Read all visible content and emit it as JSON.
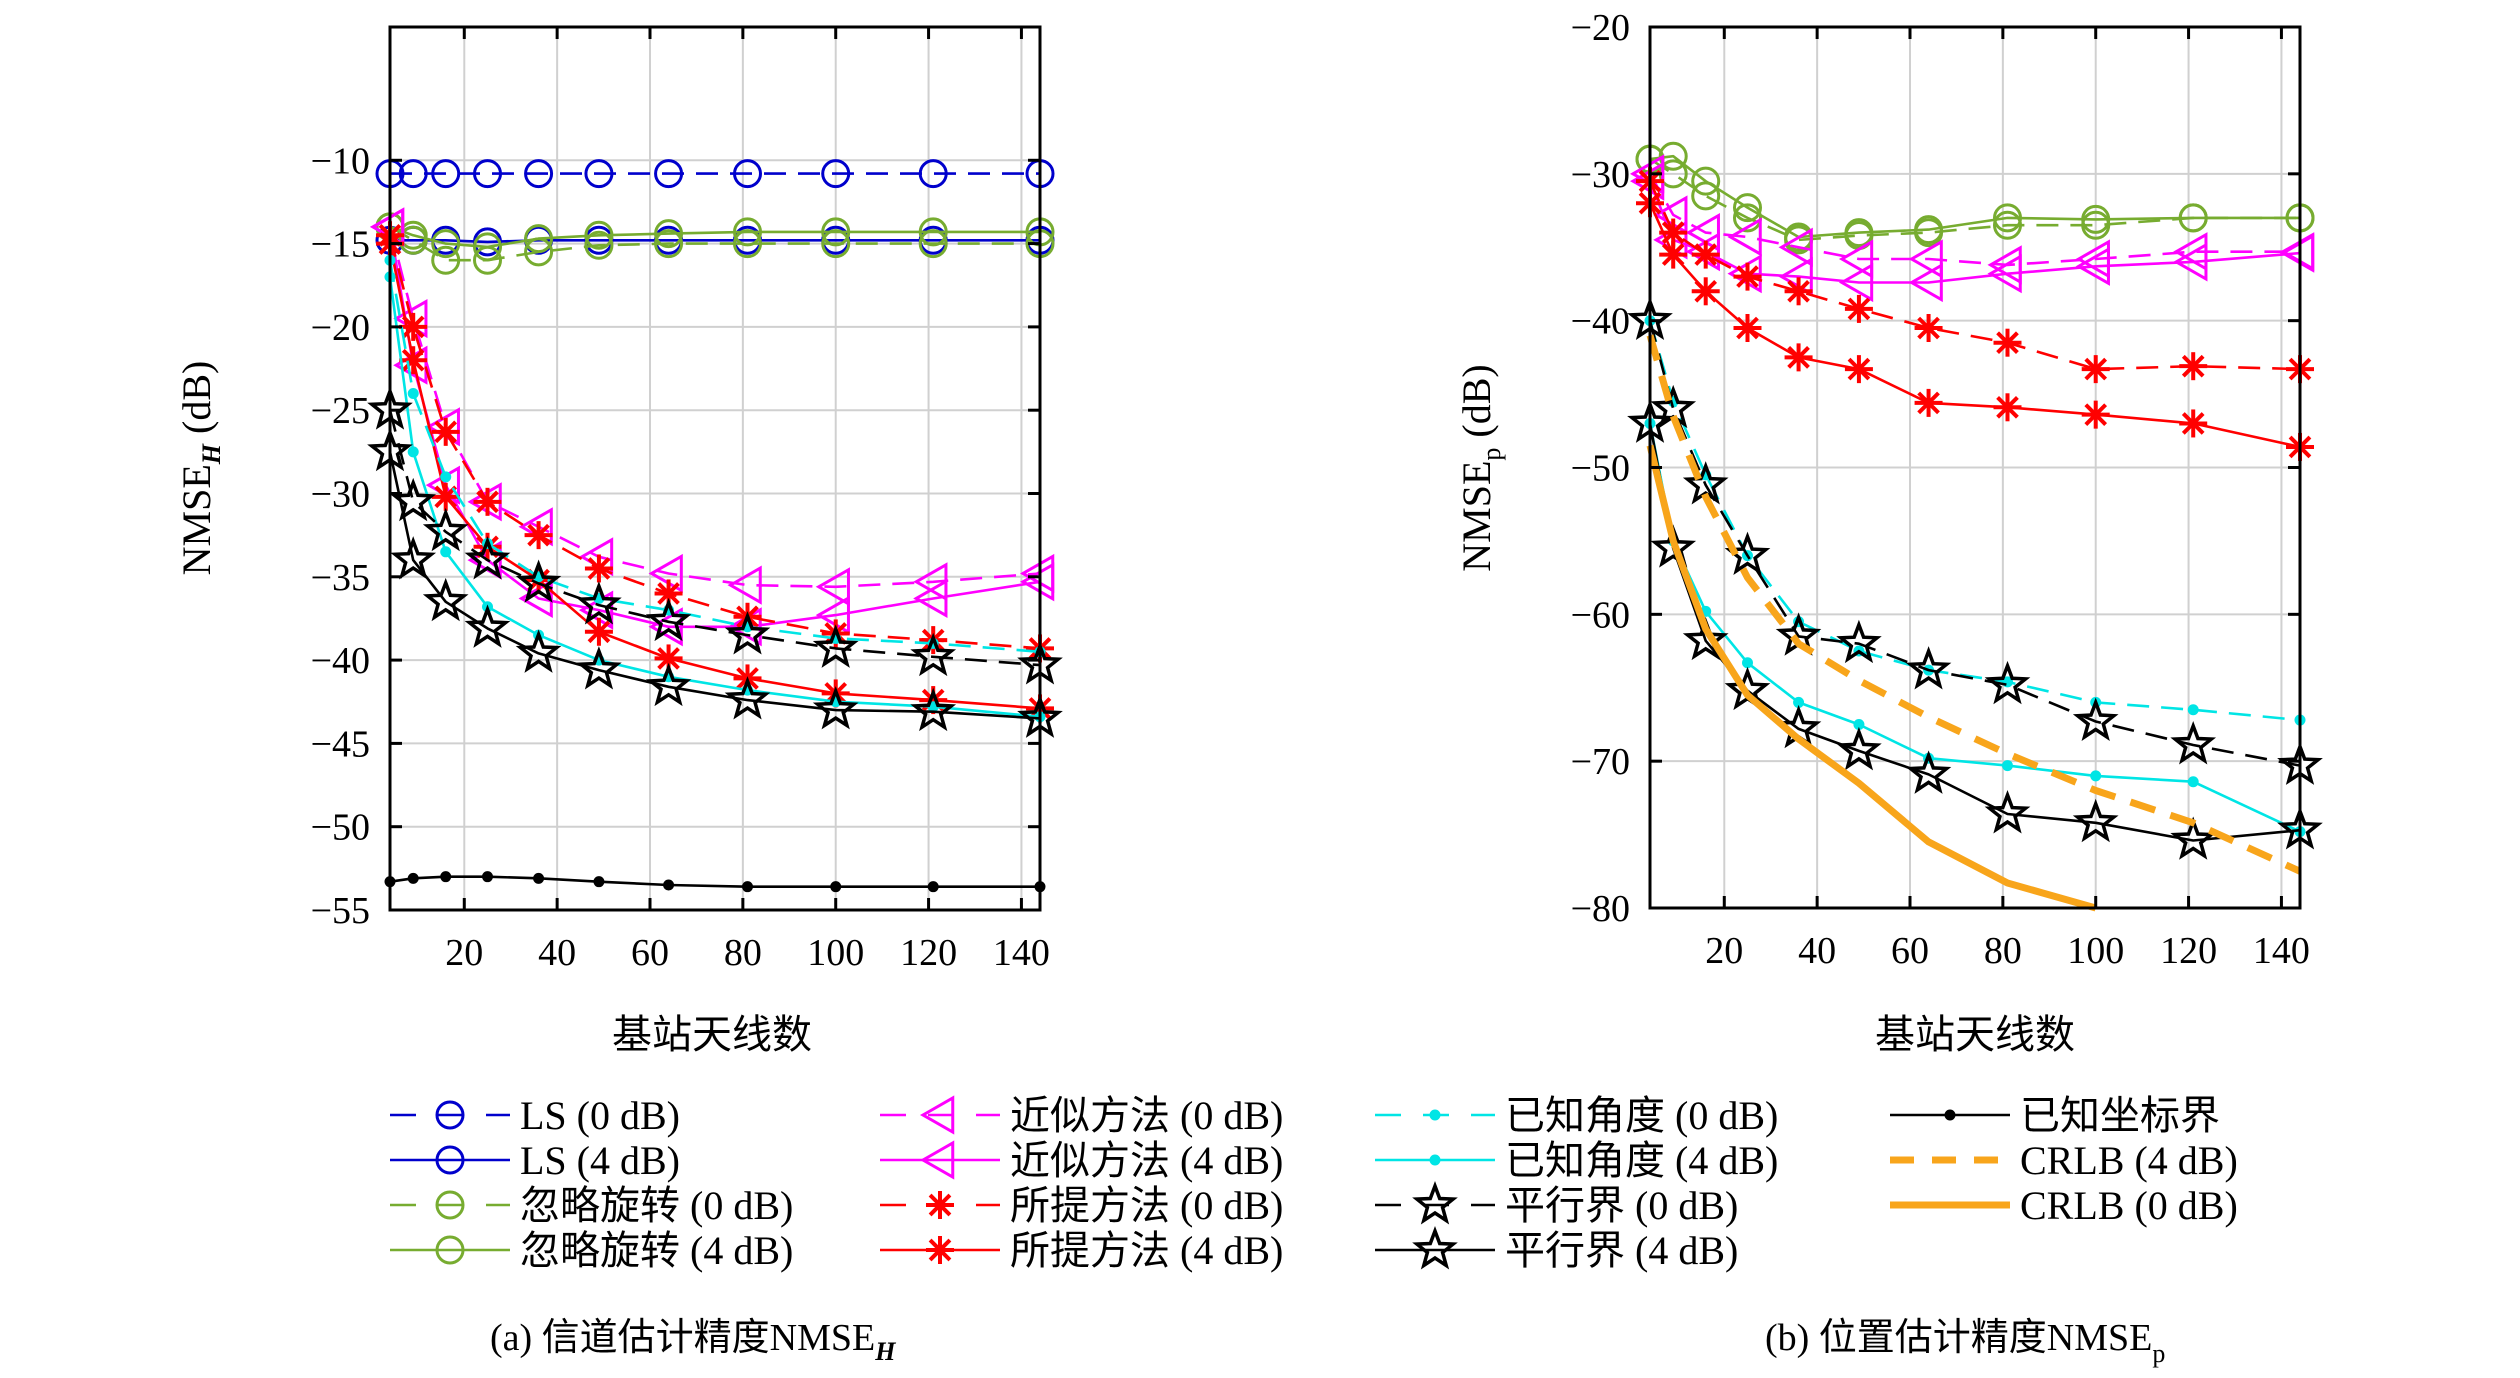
{
  "chart_data": [
    {
      "type": "line",
      "caption": "(a) 信道估计精度NMSE",
      "caption_sub": "H",
      "xlabel": "基站天线数",
      "ylabel": "NMSE",
      "ylabel_sub": "H",
      "ylabel_unit": "(dB)",
      "xlim": [
        4,
        144
      ],
      "ylim": [
        -55,
        -2
      ],
      "xticks": [
        20,
        40,
        60,
        80,
        100,
        120,
        140
      ],
      "yticks": [
        -10,
        -15,
        -20,
        -25,
        -30,
        -35,
        -40,
        -45,
        -50,
        -55
      ],
      "grid": true,
      "x": [
        4,
        9,
        16,
        25,
        36,
        49,
        64,
        81,
        100,
        121,
        144
      ],
      "series": [
        {
          "name": "LS (0 dB)",
          "color": "#0000cc",
          "dash": "dashed",
          "marker": "circle",
          "values": [
            -10.8,
            -10.8,
            -10.8,
            -10.8,
            -10.8,
            -10.8,
            -10.8,
            -10.8,
            -10.8,
            -10.8,
            -10.8
          ]
        },
        {
          "name": "LS (4 dB)",
          "color": "#0000cc",
          "dash": "solid",
          "marker": "circle",
          "values": [
            -14.8,
            -14.8,
            -14.8,
            -14.9,
            -14.8,
            -14.8,
            -14.8,
            -14.8,
            -14.8,
            -14.8,
            -14.8
          ]
        },
        {
          "name": "忽略旋转 (0 dB)",
          "color": "#77ac30",
          "dash": "dashed",
          "marker": "circle",
          "values": [
            -14.0,
            -14.8,
            -16.0,
            -16.0,
            -15.5,
            -15.1,
            -15.0,
            -15.0,
            -15.0,
            -15.0,
            -15.0
          ]
        },
        {
          "name": "忽略旋转 (4 dB)",
          "color": "#77ac30",
          "dash": "solid",
          "marker": "circle",
          "values": [
            -14.0,
            -14.5,
            -15.0,
            -15.2,
            -14.7,
            -14.5,
            -14.4,
            -14.3,
            -14.3,
            -14.3,
            -14.3
          ]
        },
        {
          "name": "近似方法 (0 dB)",
          "color": "#ff00ff",
          "dash": "dashed",
          "marker": "triangle-left",
          "values": [
            -14.0,
            -19.5,
            -26.0,
            -30.5,
            -32.0,
            -33.8,
            -34.8,
            -35.5,
            -35.6,
            -35.3,
            -34.8
          ]
        },
        {
          "name": "近似方法 (4 dB)",
          "color": "#ff00ff",
          "dash": "solid",
          "marker": "triangle-left",
          "values": [
            -14.0,
            -22.3,
            -29.5,
            -34.0,
            -36.3,
            -37.0,
            -38.0,
            -38.0,
            -37.3,
            -36.3,
            -35.3
          ]
        },
        {
          "name": "所提方法 (0 dB)",
          "color": "#ff0000",
          "dash": "dashed",
          "marker": "asterisk",
          "values": [
            -14.5,
            -20.0,
            -26.3,
            -30.5,
            -32.5,
            -34.5,
            -36.0,
            -37.4,
            -38.4,
            -38.8,
            -39.3
          ]
        },
        {
          "name": "所提方法 (4 dB)",
          "color": "#ff0000",
          "dash": "solid",
          "marker": "asterisk",
          "values": [
            -15.0,
            -22.0,
            -30.2,
            -33.2,
            -35.2,
            -38.3,
            -39.9,
            -41.1,
            -42.0,
            -42.4,
            -42.9
          ]
        },
        {
          "name": "已知角度 (0 dB)",
          "color": "#00e5e5",
          "dash": "dashed",
          "marker": "dot",
          "values": [
            -16.0,
            -24.0,
            -29.0,
            -33.0,
            -35.0,
            -36.3,
            -37.0,
            -38.0,
            -38.7,
            -39.0,
            -39.5
          ]
        },
        {
          "name": "已知角度 (4 dB)",
          "color": "#00e5e5",
          "dash": "solid",
          "marker": "dot",
          "values": [
            -17.0,
            -27.5,
            -33.5,
            -36.8,
            -38.5,
            -40.0,
            -41.0,
            -41.8,
            -42.5,
            -42.8,
            -43.4
          ]
        },
        {
          "name": "平行界 (0 dB)",
          "color": "#000000",
          "dash": "dashed",
          "marker": "star",
          "values": [
            -25.0,
            -30.5,
            -32.3,
            -34.0,
            -35.4,
            -36.7,
            -37.7,
            -38.5,
            -39.3,
            -39.8,
            -40.3
          ]
        },
        {
          "name": "平行界 (4 dB)",
          "color": "#000000",
          "dash": "solid",
          "marker": "star",
          "values": [
            -27.5,
            -34.0,
            -36.5,
            -38.1,
            -39.6,
            -40.6,
            -41.6,
            -42.4,
            -43.0,
            -43.1,
            -43.5
          ]
        },
        {
          "name": "已知坐标界",
          "color": "#000000",
          "dash": "solid",
          "marker": "dot",
          "values": [
            -53.3,
            -53.1,
            -53.0,
            -53.0,
            -53.1,
            -53.3,
            -53.5,
            -53.6,
            -53.6,
            -53.6,
            -53.6
          ]
        }
      ]
    },
    {
      "type": "line",
      "caption": "(b) 位置估计精度NMSE",
      "caption_sub": "p",
      "xlabel": "基站天线数",
      "ylabel": "NMSE",
      "ylabel_sub": "p",
      "ylabel_unit": "(dB)",
      "xlim": [
        4,
        144
      ],
      "ylim": [
        -80,
        -20
      ],
      "xticks": [
        20,
        40,
        60,
        80,
        100,
        120,
        140
      ],
      "yticks": [
        -20,
        -30,
        -40,
        -50,
        -60,
        -70,
        -80
      ],
      "grid": true,
      "x": [
        4,
        9,
        16,
        25,
        36,
        49,
        64,
        81,
        100,
        121,
        144
      ],
      "series": [
        {
          "name": "忽略旋转 (0 dB)",
          "color": "#77ac30",
          "dash": "dashed",
          "marker": "circle",
          "values": [
            -29.0,
            -30.0,
            -31.5,
            -33.0,
            -34.5,
            -34.2,
            -34.0,
            -33.5,
            -33.5,
            -33.0,
            -33.0
          ]
        },
        {
          "name": "忽略旋转 (4 dB)",
          "color": "#77ac30",
          "dash": "solid",
          "marker": "circle",
          "values": [
            -29.0,
            -28.8,
            -30.5,
            -32.3,
            -34.3,
            -34.0,
            -33.8,
            -33.0,
            -33.1,
            -33.0,
            -33.0
          ]
        },
        {
          "name": "近似方法 (0 dB)",
          "color": "#ff00ff",
          "dash": "dashed",
          "marker": "triangle-left",
          "values": [
            -30.0,
            -32.8,
            -34.0,
            -34.3,
            -35.0,
            -35.8,
            -35.8,
            -36.2,
            -35.8,
            -35.3,
            -35.3
          ]
        },
        {
          "name": "近似方法 (4 dB)",
          "color": "#ff00ff",
          "dash": "solid",
          "marker": "triangle-left",
          "values": [
            -30.5,
            -34.5,
            -35.3,
            -36.8,
            -37.0,
            -37.4,
            -37.4,
            -36.8,
            -36.3,
            -36.0,
            -35.4
          ]
        },
        {
          "name": "所提方法 (0 dB)",
          "color": "#ff0000",
          "dash": "dashed",
          "marker": "asterisk",
          "values": [
            -30.5,
            -34.0,
            -35.5,
            -37.0,
            -38.0,
            -39.2,
            -40.5,
            -41.5,
            -43.3,
            -43.1,
            -43.3
          ]
        },
        {
          "name": "所提方法 (4 dB)",
          "color": "#ff0000",
          "dash": "solid",
          "marker": "asterisk",
          "values": [
            -32.0,
            -35.5,
            -38.0,
            -40.5,
            -42.5,
            -43.3,
            -45.6,
            -45.9,
            -46.4,
            -47.0,
            -48.6
          ]
        },
        {
          "name": "已知角度 (0 dB)",
          "color": "#00e5e5",
          "dash": "dashed",
          "marker": "dot",
          "values": [
            -40.0,
            -45.5,
            -50.5,
            -56.0,
            -60.5,
            -62.5,
            -63.8,
            -64.6,
            -66.0,
            -66.5,
            -67.2
          ]
        },
        {
          "name": "已知角度 (4 dB)",
          "color": "#00e5e5",
          "dash": "solid",
          "marker": "dot",
          "values": [
            -47.0,
            -55.0,
            -59.8,
            -63.3,
            -66.0,
            -67.5,
            -69.8,
            -70.3,
            -71.0,
            -71.4,
            -74.8
          ]
        },
        {
          "name": "平行界 (0 dB)",
          "color": "#000000",
          "dash": "dashed",
          "marker": "star",
          "values": [
            -40.0,
            -46.0,
            -51.2,
            -56.0,
            -61.5,
            -62.0,
            -63.8,
            -64.8,
            -67.3,
            -68.9,
            -70.3
          ]
        },
        {
          "name": "平行界 (4 dB)",
          "color": "#000000",
          "dash": "solid",
          "marker": "star",
          "values": [
            -47.0,
            -55.5,
            -61.8,
            -65.2,
            -67.8,
            -69.3,
            -70.9,
            -73.6,
            -74.2,
            -75.4,
            -74.7
          ]
        },
        {
          "name": "CRLB (4 dB)",
          "color": "#f8a51b",
          "dash": "bold-dashed",
          "marker": "none",
          "values": [
            -41.0,
            -46.5,
            -52.0,
            -57.5,
            -62.0,
            -64.5,
            -67.0,
            -69.5,
            -72.0,
            -74.2,
            -77.5
          ]
        },
        {
          "name": "CRLB (0 dB)",
          "color": "#f8a51b",
          "dash": "bold-solid",
          "marker": "none",
          "values": [
            -48.5,
            -55.0,
            -61.0,
            -65.5,
            -68.5,
            -71.5,
            -75.5,
            -78.3,
            -80.0,
            null,
            null
          ]
        }
      ]
    }
  ],
  "legend": {
    "placement": "bottom",
    "columns": [
      [
        {
          "label": "LS (0 dB)",
          "color": "#0000cc",
          "dash": "dashed",
          "marker": "circle"
        },
        {
          "label": "LS (4 dB)",
          "color": "#0000cc",
          "dash": "solid",
          "marker": "circle"
        },
        {
          "label": "忽略旋转 (0 dB)",
          "color": "#77ac30",
          "dash": "dashed",
          "marker": "circle"
        },
        {
          "label": "忽略旋转 (4 dB)",
          "color": "#77ac30",
          "dash": "solid",
          "marker": "circle"
        }
      ],
      [
        {
          "label": "近似方法 (0 dB)",
          "color": "#ff00ff",
          "dash": "dashed",
          "marker": "triangle-left"
        },
        {
          "label": "近似方法 (4 dB)",
          "color": "#ff00ff",
          "dash": "solid",
          "marker": "triangle-left"
        },
        {
          "label": "所提方法 (0 dB)",
          "color": "#ff0000",
          "dash": "dashed",
          "marker": "asterisk"
        },
        {
          "label": "所提方法 (4 dB)",
          "color": "#ff0000",
          "dash": "solid",
          "marker": "asterisk"
        }
      ],
      [
        {
          "label": "已知角度 (0 dB)",
          "color": "#00e5e5",
          "dash": "dashed",
          "marker": "dot"
        },
        {
          "label": "已知角度 (4 dB)",
          "color": "#00e5e5",
          "dash": "solid",
          "marker": "dot"
        },
        {
          "label": "平行界 (0 dB)",
          "color": "#000000",
          "dash": "dashed",
          "marker": "star"
        },
        {
          "label": "平行界 (4 dB)",
          "color": "#000000",
          "dash": "solid",
          "marker": "star"
        }
      ],
      [
        {
          "label": "已知坐标界",
          "color": "#000000",
          "dash": "solid",
          "marker": "dot"
        },
        {
          "label": "CRLB (4 dB)",
          "color": "#f8a51b",
          "dash": "bold-dashed",
          "marker": "none"
        },
        {
          "label": "CRLB (0 dB)",
          "color": "#f8a51b",
          "dash": "bold-solid",
          "marker": "none"
        }
      ]
    ]
  }
}
